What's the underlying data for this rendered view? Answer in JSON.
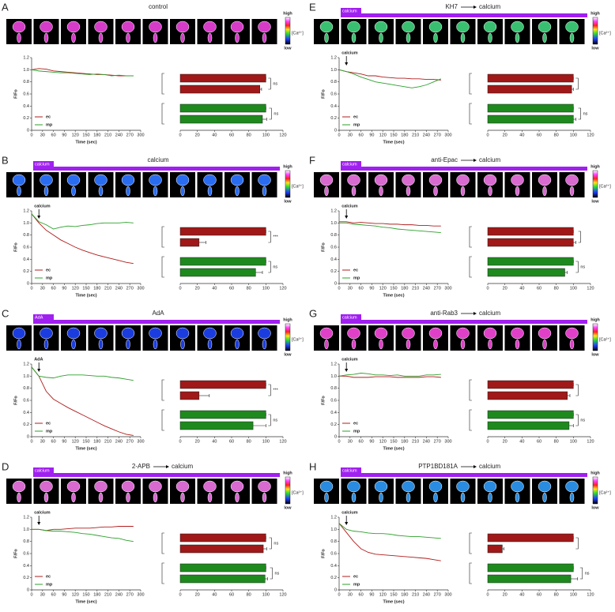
{
  "colorbar": {
    "high": "high",
    "low": "low",
    "label": "[Ca²⁺]"
  },
  "panels": [
    {
      "letter": "A",
      "title": [
        "control"
      ],
      "strip_label": null,
      "strip_color": "#d63cc8"
    },
    {
      "letter": "B",
      "title": [
        "calcium"
      ],
      "strip_label": "calcium",
      "strip_color": "#2a6cf0"
    },
    {
      "letter": "C",
      "title": [
        "AdA"
      ],
      "strip_label": "AdA",
      "strip_color": "#1b3de0"
    },
    {
      "letter": "D",
      "title": [
        "2-APB",
        "calcium"
      ],
      "strip_label": "calcium",
      "strip_color": "#d86ad0"
    },
    {
      "letter": "E",
      "title": [
        "KH7",
        "calcium"
      ],
      "strip_label": "calcium",
      "strip_color": "#38c070"
    },
    {
      "letter": "F",
      "title": [
        "anti-Epac",
        "calcium"
      ],
      "strip_label": "calcium",
      "strip_color": "#d86ad0"
    },
    {
      "letter": "G",
      "title": [
        "anti-Rab3",
        "calcium"
      ],
      "strip_label": "calcium",
      "strip_color": "#e040c8"
    },
    {
      "letter": "H",
      "title": [
        "PTP1BD181A",
        "calcium"
      ],
      "strip_label": "calcium",
      "strip_color": "#2a8ce0"
    }
  ],
  "chart_data": [
    {
      "type": "line",
      "xlabel": "Time (sec)",
      "ylabel": "F/Fo",
      "annotation": null,
      "x": [
        0,
        20,
        40,
        60,
        80,
        100,
        120,
        140,
        160,
        180,
        200,
        220,
        240,
        260,
        280
      ],
      "xlim": [
        0,
        300
      ],
      "xticks": [
        0,
        30,
        60,
        90,
        120,
        150,
        180,
        210,
        240,
        270,
        300
      ],
      "ylim": [
        0,
        1.2
      ],
      "yticks": [
        0,
        0.2,
        0.4,
        0.6,
        0.8,
        {
          "value": 1,
          "label": "1.0"
        },
        1.2
      ],
      "series": [
        {
          "name": "ec",
          "color": "#b01c1c",
          "values": [
            1.0,
            1.02,
            1.01,
            0.98,
            0.97,
            0.96,
            0.95,
            0.94,
            0.93,
            0.92,
            0.92,
            0.91,
            0.9,
            0.9,
            0.9
          ]
        },
        {
          "name": "mp",
          "color": "#2ca02c",
          "values": [
            1.0,
            0.98,
            0.97,
            0.96,
            0.95,
            0.95,
            0.94,
            0.93,
            0.92,
            0.93,
            0.92,
            0.9,
            0.91,
            0.9,
            0.9
          ]
        }
      ]
    },
    {
      "type": "hbar",
      "xlim": [
        0,
        120
      ],
      "xticks": [
        0,
        20,
        40,
        60,
        80,
        100,
        120
      ],
      "groups": [
        {
          "color": "#a01818",
          "values": [
            100,
            93
          ],
          "errors": [
            0,
            2
          ],
          "sig": "ns"
        },
        {
          "color": "#1e8a1e",
          "values": [
            100,
            96
          ],
          "errors": [
            0,
            5
          ],
          "sig": "ns"
        }
      ]
    },
    {
      "type": "line",
      "xlabel": "Time (sec)",
      "ylabel": "F/Fo",
      "annotation": {
        "text": "calcium",
        "x": 20
      },
      "x": [
        0,
        20,
        40,
        60,
        80,
        100,
        120,
        140,
        160,
        180,
        200,
        220,
        240,
        260,
        280
      ],
      "xlim": [
        0,
        300
      ],
      "xticks": [
        0,
        30,
        60,
        90,
        120,
        150,
        180,
        210,
        240,
        270,
        300
      ],
      "ylim": [
        0,
        1.2
      ],
      "yticks": [
        0,
        0.2,
        0.4,
        0.6,
        0.8,
        {
          "value": 1,
          "label": "1.0"
        },
        1.2
      ],
      "series": [
        {
          "name": "ec",
          "color": "#b01c1c",
          "values": [
            1.15,
            1.0,
            0.88,
            0.8,
            0.72,
            0.66,
            0.6,
            0.55,
            0.51,
            0.47,
            0.44,
            0.41,
            0.38,
            0.35,
            0.33
          ]
        },
        {
          "name": "mp",
          "color": "#2ca02c",
          "values": [
            1.15,
            1.02,
            0.97,
            0.9,
            0.93,
            0.95,
            0.94,
            0.96,
            0.97,
            0.99,
            1.0,
            1.0,
            1.0,
            1.01,
            1.0
          ]
        }
      ]
    },
    {
      "type": "hbar",
      "xlim": [
        0,
        120
      ],
      "xticks": [
        0,
        20,
        40,
        60,
        80,
        100,
        120
      ],
      "groups": [
        {
          "color": "#a01818",
          "values": [
            100,
            22
          ],
          "errors": [
            0,
            8
          ],
          "sig": "***"
        },
        {
          "color": "#1e8a1e",
          "values": [
            100,
            88
          ],
          "errors": [
            0,
            8
          ],
          "sig": "ns"
        }
      ]
    },
    {
      "type": "line",
      "xlabel": "Time (sec)",
      "ylabel": "F/Fo",
      "annotation": {
        "text": "AdA",
        "x": 20
      },
      "x": [
        0,
        20,
        40,
        60,
        80,
        100,
        120,
        140,
        160,
        180,
        200,
        220,
        240,
        260,
        280
      ],
      "xlim": [
        0,
        300
      ],
      "xticks": [
        0,
        30,
        60,
        90,
        120,
        150,
        180,
        210,
        240,
        270,
        300
      ],
      "ylim": [
        0,
        1.2
      ],
      "yticks": [
        0,
        0.2,
        0.4,
        0.6,
        0.8,
        {
          "value": 1,
          "label": "1.0"
        },
        1.2
      ],
      "series": [
        {
          "name": "ec",
          "color": "#b01c1c",
          "values": [
            1.15,
            1.0,
            0.75,
            0.62,
            0.55,
            0.48,
            0.42,
            0.36,
            0.3,
            0.24,
            0.18,
            0.13,
            0.08,
            0.04,
            0.02
          ]
        },
        {
          "name": "mp",
          "color": "#2ca02c",
          "values": [
            1.15,
            1.0,
            0.98,
            0.97,
            1.0,
            1.02,
            1.02,
            1.02,
            1.01,
            1.0,
            1.0,
            0.98,
            0.97,
            0.95,
            0.93
          ]
        }
      ]
    },
    {
      "type": "hbar",
      "xlim": [
        0,
        120
      ],
      "xticks": [
        0,
        20,
        40,
        60,
        80,
        100,
        120
      ],
      "groups": [
        {
          "color": "#a01818",
          "values": [
            100,
            22
          ],
          "errors": [
            0,
            12
          ],
          "sig": "***"
        },
        {
          "color": "#1e8a1e",
          "values": [
            100,
            85
          ],
          "errors": [
            0,
            15
          ],
          "sig": "ns"
        }
      ]
    },
    {
      "type": "line",
      "xlabel": "Time (sec)",
      "ylabel": "F/Fo",
      "annotation": {
        "text": "calcium",
        "x": 20
      },
      "x": [
        0,
        20,
        40,
        60,
        80,
        100,
        120,
        140,
        160,
        180,
        200,
        220,
        240,
        260,
        280
      ],
      "xlim": [
        0,
        300
      ],
      "xticks": [
        0,
        30,
        60,
        90,
        120,
        150,
        180,
        210,
        240,
        270,
        300
      ],
      "ylim": [
        0,
        1.2
      ],
      "yticks": [
        0,
        0.2,
        0.4,
        0.6,
        0.8,
        {
          "value": 1,
          "label": "1.0"
        },
        1.2
      ],
      "series": [
        {
          "name": "ec",
          "color": "#b01c1c",
          "values": [
            1.0,
            1.0,
            0.98,
            1.0,
            1.0,
            1.01,
            1.02,
            1.02,
            1.02,
            1.03,
            1.04,
            1.04,
            1.05,
            1.05,
            1.05
          ]
        },
        {
          "name": "mp",
          "color": "#2ca02c",
          "values": [
            1.0,
            1.0,
            0.98,
            0.97,
            0.97,
            0.96,
            0.95,
            0.93,
            0.92,
            0.9,
            0.88,
            0.86,
            0.85,
            0.82,
            0.8
          ]
        }
      ]
    },
    {
      "type": "hbar",
      "xlim": [
        0,
        120
      ],
      "xticks": [
        0,
        20,
        40,
        60,
        80,
        100,
        120
      ],
      "groups": [
        {
          "color": "#a01818",
          "values": [
            100,
            97
          ],
          "errors": [
            0,
            4
          ],
          "sig": "ns"
        },
        {
          "color": "#1e8a1e",
          "values": [
            100,
            99
          ],
          "errors": [
            0,
            3
          ],
          "sig": "ns"
        }
      ]
    },
    {
      "type": "line",
      "xlabel": "Time (sec)",
      "ylabel": "F/Fo",
      "annotation": {
        "text": "calcium",
        "x": 20
      },
      "x": [
        0,
        20,
        40,
        60,
        80,
        100,
        120,
        140,
        160,
        180,
        200,
        220,
        240,
        260,
        280
      ],
      "xlim": [
        0,
        300
      ],
      "xticks": [
        0,
        30,
        60,
        90,
        120,
        150,
        180,
        210,
        240,
        270,
        300
      ],
      "ylim": [
        0,
        1.2
      ],
      "yticks": [
        0,
        0.2,
        0.4,
        0.6,
        0.8,
        {
          "value": 1,
          "label": "1.0"
        },
        1.2
      ],
      "series": [
        {
          "name": "ec",
          "color": "#b01c1c",
          "values": [
            1.0,
            0.97,
            0.95,
            0.93,
            0.9,
            0.9,
            0.88,
            0.87,
            0.86,
            0.86,
            0.85,
            0.85,
            0.84,
            0.84,
            0.83
          ]
        },
        {
          "name": "mp",
          "color": "#2ca02c",
          "values": [
            1.0,
            0.97,
            0.93,
            0.88,
            0.84,
            0.8,
            0.78,
            0.76,
            0.74,
            0.72,
            0.7,
            0.72,
            0.75,
            0.8,
            0.85
          ]
        }
      ]
    },
    {
      "type": "hbar",
      "xlim": [
        0,
        120
      ],
      "xticks": [
        0,
        20,
        40,
        60,
        80,
        100,
        120
      ],
      "groups": [
        {
          "color": "#a01818",
          "values": [
            100,
            98
          ],
          "errors": [
            0,
            2
          ],
          "sig": null
        },
        {
          "color": "#1e8a1e",
          "values": [
            100,
            100
          ],
          "errors": [
            0,
            3
          ],
          "sig": "ns"
        }
      ]
    },
    {
      "type": "line",
      "xlabel": "Time (sec)",
      "ylabel": "F/Fo",
      "annotation": {
        "text": "calcium",
        "x": 20
      },
      "x": [
        0,
        20,
        40,
        60,
        80,
        100,
        120,
        140,
        160,
        180,
        200,
        220,
        240,
        260,
        280
      ],
      "xlim": [
        0,
        300
      ],
      "xticks": [
        0,
        30,
        60,
        90,
        120,
        150,
        180,
        210,
        240,
        270,
        300
      ],
      "ylim": [
        0,
        1.2
      ],
      "yticks": [
        0,
        0.2,
        0.4,
        0.6,
        0.8,
        {
          "value": 1,
          "label": "1.0"
        },
        1.2
      ],
      "series": [
        {
          "name": "ec",
          "color": "#b01c1c",
          "values": [
            1.02,
            1.02,
            1.0,
            1.01,
            1.0,
            0.99,
            0.99,
            0.98,
            0.98,
            0.97,
            0.97,
            0.96,
            0.96,
            0.95,
            0.95
          ]
        },
        {
          "name": "mp",
          "color": "#2ca02c",
          "values": [
            1.0,
            1.0,
            0.98,
            0.97,
            0.96,
            0.95,
            0.93,
            0.92,
            0.9,
            0.89,
            0.88,
            0.87,
            0.86,
            0.85,
            0.84
          ]
        }
      ]
    },
    {
      "type": "hbar",
      "xlim": [
        0,
        120
      ],
      "xticks": [
        0,
        20,
        40,
        60,
        80,
        100,
        120
      ],
      "groups": [
        {
          "color": "#a01818",
          "values": [
            100,
            100
          ],
          "errors": [
            0,
            3
          ],
          "sig": null
        },
        {
          "color": "#1e8a1e",
          "values": [
            100,
            90
          ],
          "errors": [
            0,
            3
          ],
          "sig": "ns"
        }
      ]
    },
    {
      "type": "line",
      "xlabel": "Time (sec)",
      "ylabel": "F/Fo",
      "annotation": {
        "text": "calcium",
        "x": 20
      },
      "x": [
        0,
        20,
        40,
        60,
        80,
        100,
        120,
        140,
        160,
        180,
        200,
        220,
        240,
        260,
        280
      ],
      "xlim": [
        0,
        300
      ],
      "xticks": [
        0,
        30,
        60,
        90,
        120,
        150,
        180,
        210,
        240,
        270,
        300
      ],
      "ylim": [
        0,
        1.2
      ],
      "yticks": [
        0,
        0.2,
        0.4,
        0.6,
        0.8,
        {
          "value": 1,
          "label": "1.0"
        },
        1.2
      ],
      "series": [
        {
          "name": "ec",
          "color": "#b01c1c",
          "values": [
            1.0,
            1.0,
            0.98,
            0.98,
            0.98,
            0.99,
            0.99,
            0.99,
            0.98,
            0.98,
            0.98,
            0.98,
            0.99,
            0.99,
            0.98
          ]
        },
        {
          "name": "mp",
          "color": "#2ca02c",
          "values": [
            1.0,
            1.02,
            1.03,
            1.05,
            1.04,
            1.02,
            1.02,
            1.01,
            1.02,
            1.0,
            1.0,
            1.0,
            1.02,
            1.02,
            1.03
          ]
        }
      ]
    },
    {
      "type": "hbar",
      "xlim": [
        0,
        120
      ],
      "xticks": [
        0,
        20,
        40,
        60,
        80,
        100,
        120
      ],
      "groups": [
        {
          "color": "#a01818",
          "values": [
            100,
            93
          ],
          "errors": [
            0,
            3
          ],
          "sig": null
        },
        {
          "color": "#1e8a1e",
          "values": [
            100,
            95
          ],
          "errors": [
            0,
            5
          ],
          "sig": "ns"
        }
      ]
    },
    {
      "type": "line",
      "xlabel": "Time (sec)",
      "ylabel": "F/Fo",
      "annotation": {
        "text": "calcium",
        "x": 20
      },
      "x": [
        0,
        20,
        40,
        60,
        80,
        100,
        120,
        140,
        160,
        180,
        200,
        220,
        240,
        260,
        280
      ],
      "xlim": [
        0,
        300
      ],
      "xticks": [
        0,
        30,
        60,
        90,
        120,
        150,
        180,
        210,
        240,
        270,
        300
      ],
      "ylim": [
        0,
        1.2
      ],
      "yticks": [
        0,
        0.2,
        0.4,
        0.6,
        0.8,
        {
          "value": 1,
          "label": "1.0"
        },
        1.2
      ],
      "series": [
        {
          "name": "ec",
          "color": "#b01c1c",
          "values": [
            1.1,
            0.95,
            0.8,
            0.68,
            0.62,
            0.59,
            0.58,
            0.57,
            0.56,
            0.55,
            0.54,
            0.53,
            0.52,
            0.5,
            0.48
          ]
        },
        {
          "name": "mp",
          "color": "#2ca02c",
          "values": [
            1.1,
            1.0,
            0.97,
            0.96,
            0.94,
            0.93,
            0.93,
            0.92,
            0.9,
            0.89,
            0.88,
            0.88,
            0.87,
            0.86,
            0.85
          ]
        }
      ]
    },
    {
      "type": "hbar",
      "xlim": [
        0,
        120
      ],
      "xticks": [
        0,
        20,
        40,
        60,
        80,
        100,
        120
      ],
      "groups": [
        {
          "color": "#a01818",
          "values": [
            100,
            17
          ],
          "errors": [
            0,
            2
          ],
          "sig": null
        },
        {
          "color": "#1e8a1e",
          "values": [
            100,
            97
          ],
          "errors": [
            0,
            8
          ],
          "sig": "ns"
        }
      ]
    }
  ]
}
